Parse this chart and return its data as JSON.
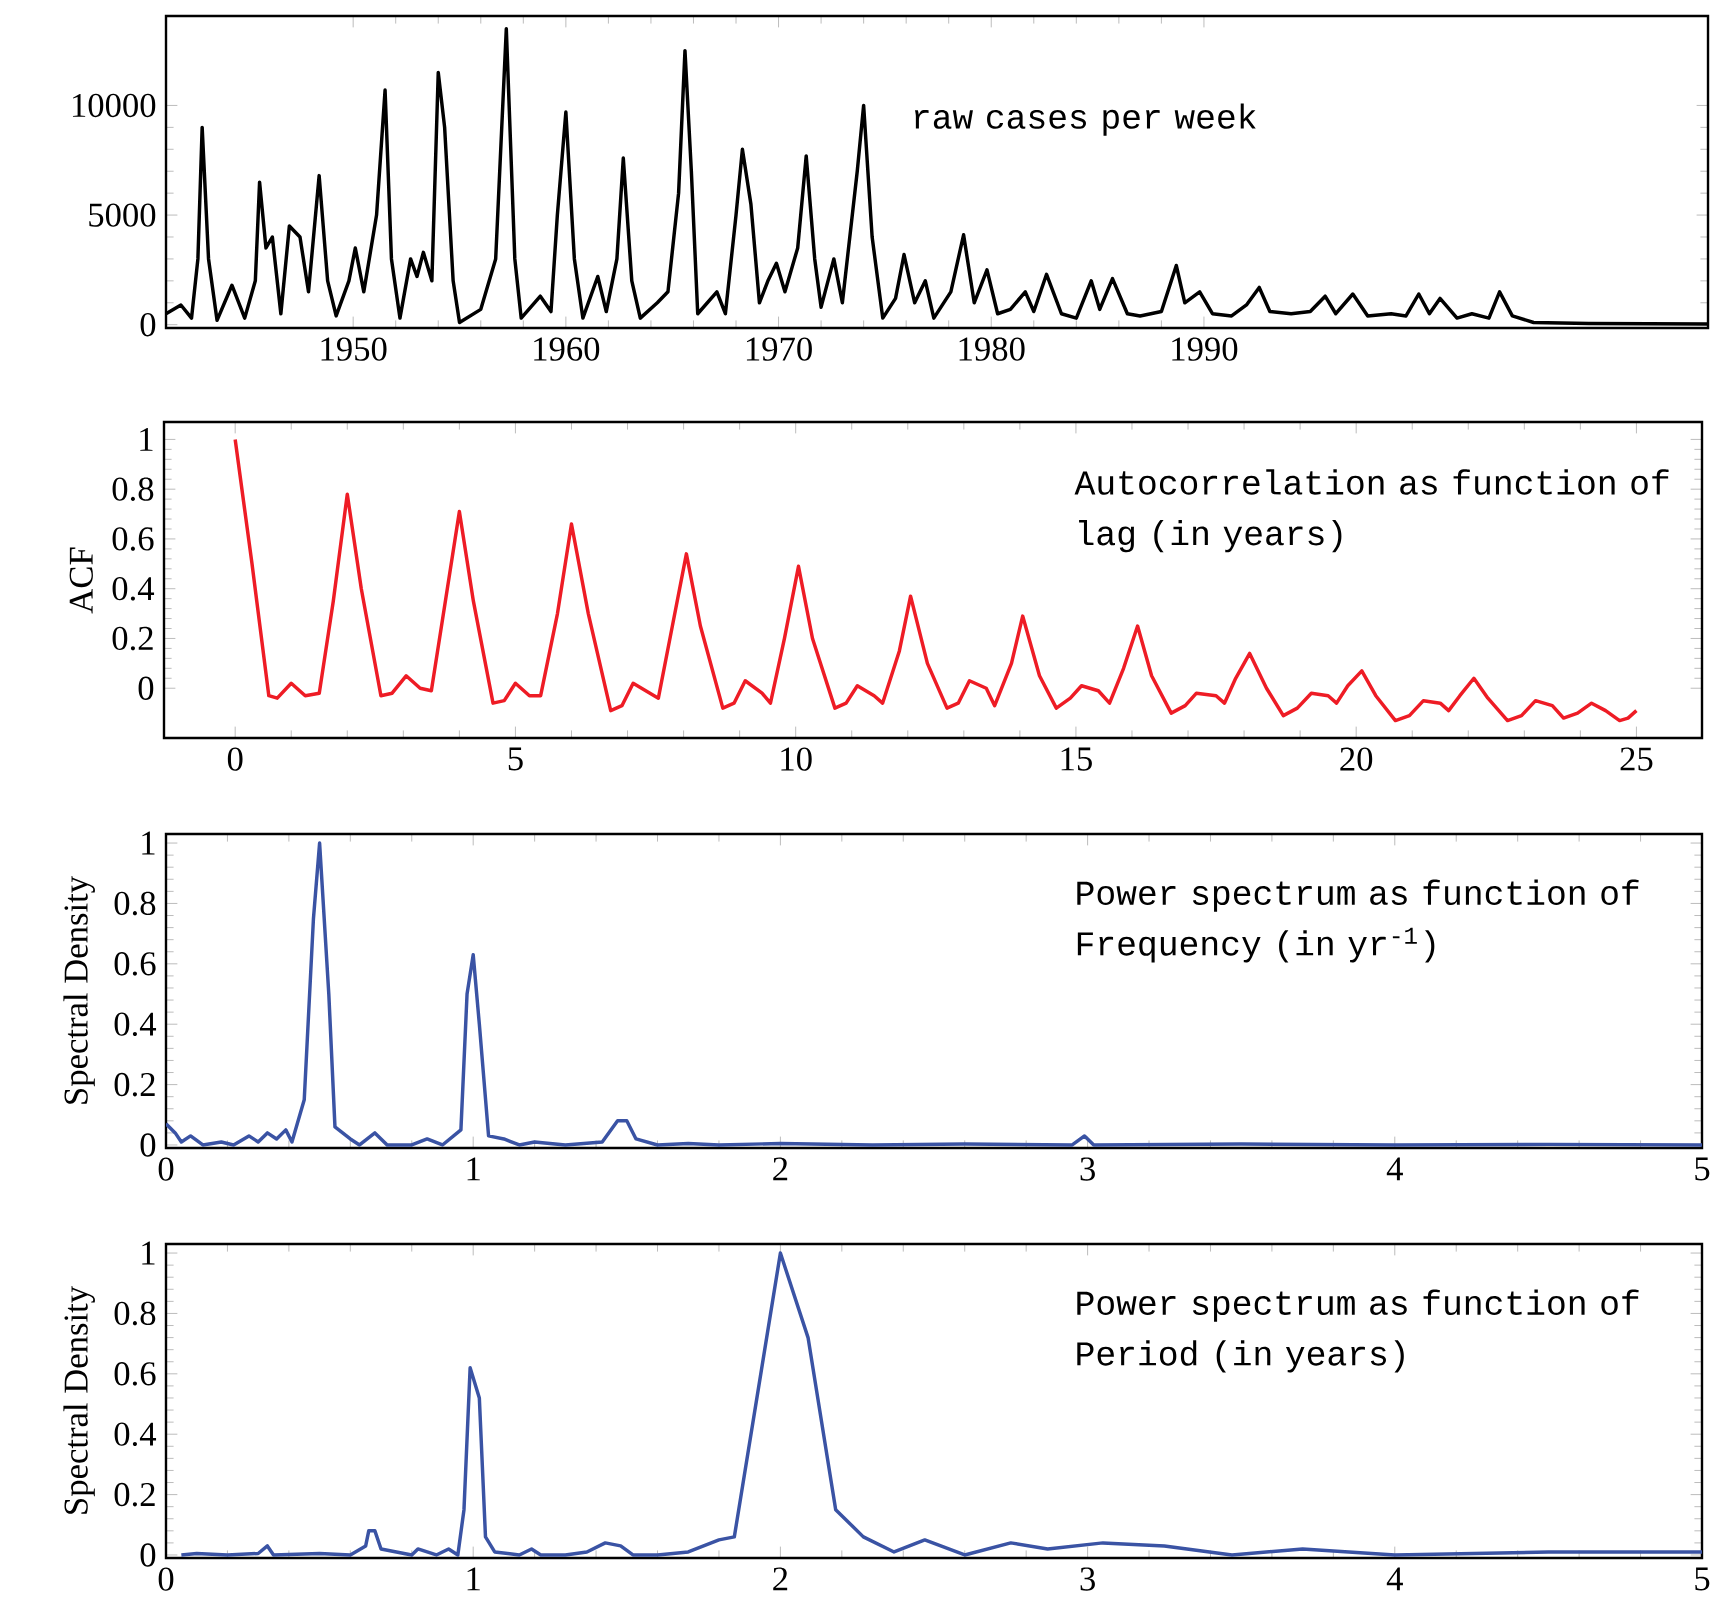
{
  "chart_data": [
    {
      "type": "line",
      "annotations": [
        "raw cases per week"
      ],
      "xlim": [
        1941.2,
        2013.7
      ],
      "ylim": [
        -150,
        14080
      ],
      "xticks": [
        1950,
        1960,
        1970,
        1980,
        1990
      ],
      "yticks": [
        0,
        5000,
        10000
      ],
      "x": [
        1941.2,
        1941.9,
        1942.4,
        1942.7,
        1942.9,
        1943.2,
        1943.6,
        1944.3,
        1944.9,
        1945.4,
        1945.6,
        1945.9,
        1946.2,
        1946.6,
        1947.0,
        1947.5,
        1947.9,
        1948.4,
        1948.8,
        1949.2,
        1949.8,
        1950.1,
        1950.5,
        1951.1,
        1951.5,
        1951.8,
        1952.2,
        1952.7,
        1953.0,
        1953.3,
        1953.7,
        1954.0,
        1954.3,
        1954.7,
        1955.0,
        1956.0,
        1956.7,
        1957.2,
        1957.6,
        1957.9,
        1958.8,
        1959.3,
        1959.6,
        1960.0,
        1960.4,
        1960.8,
        1961.5,
        1961.9,
        1962.4,
        1962.7,
        1963.1,
        1963.5,
        1964.3,
        1964.8,
        1965.3,
        1965.6,
        1965.9,
        1966.2,
        1967.1,
        1967.5,
        1968.0,
        1968.3,
        1968.7,
        1969.1,
        1969.5,
        1969.9,
        1970.3,
        1970.9,
        1971.3,
        1971.7,
        1972.0,
        1972.6,
        1973.0,
        1973.7,
        1974.0,
        1974.4,
        1974.9,
        1975.5,
        1975.9,
        1976.4,
        1976.9,
        1977.3,
        1978.1,
        1978.7,
        1979.2,
        1979.8,
        1980.3,
        1980.9,
        1981.6,
        1982.0,
        1982.6,
        1983.3,
        1984.0,
        1984.7,
        1985.1,
        1985.7,
        1986.4,
        1987.0,
        1988.0,
        1988.7,
        1989.1,
        1989.8,
        1990.4,
        1991.3,
        1992.0,
        1992.6,
        1993.1,
        1994.1,
        1995.0,
        1995.7,
        1996.2,
        1997.0,
        1997.7,
        1998.8,
        1999.5,
        2000.1,
        2000.6,
        2001.1,
        2001.9,
        2002.6,
        2003.4,
        2003.9,
        2004.5,
        2005.5,
        2008.1,
        2013.7
      ],
      "series": [
        {
          "color": "#000000",
          "values": [
            500,
            900,
            300,
            3000,
            9000,
            3000,
            200,
            1800,
            300,
            2000,
            6500,
            3500,
            4000,
            500,
            4500,
            4000,
            1500,
            6800,
            2000,
            400,
            2000,
            3500,
            1500,
            5000,
            10700,
            3000,
            300,
            3000,
            2200,
            3300,
            2000,
            11500,
            9000,
            2000,
            100,
            700,
            3000,
            13500,
            3000,
            300,
            1300,
            600,
            5000,
            9700,
            3000,
            300,
            2200,
            600,
            3000,
            7600,
            2000,
            300,
            1000,
            1500,
            6000,
            12500,
            7000,
            500,
            1500,
            500,
            5000,
            8000,
            5500,
            1000,
            2000,
            2800,
            1500,
            3500,
            7700,
            3000,
            800,
            3000,
            1000,
            7000,
            10000,
            4000,
            300,
            1200,
            3200,
            1000,
            2000,
            300,
            1500,
            4100,
            1000,
            2500,
            500,
            700,
            1500,
            600,
            2300,
            500,
            300,
            2000,
            700,
            2100,
            500,
            400,
            600,
            2700,
            1000,
            1500,
            500,
            400,
            900,
            1700,
            600,
            500,
            600,
            1300,
            500,
            1400,
            400,
            500,
            400,
            1400,
            500,
            1200,
            300,
            500,
            300,
            1500,
            400,
            100,
            50,
            30
          ]
        }
      ]
    },
    {
      "type": "line",
      "ylabel": "ACF",
      "annotations": [
        "Autocorrelation as function of lag (in years)"
      ],
      "xlim": [
        -1.27,
        26.17
      ],
      "ylim": [
        -0.2,
        1.07
      ],
      "xticks": [
        0,
        5,
        10,
        15,
        20,
        25
      ],
      "yticks": [
        0,
        0.2,
        0.4,
        0.6,
        0.8,
        1
      ],
      "x": [
        0,
        0.3,
        0.6,
        0.75,
        1.0,
        1.25,
        1.5,
        1.75,
        2.0,
        2.25,
        2.6,
        2.8,
        3.05,
        3.3,
        3.5,
        3.75,
        4.0,
        4.25,
        4.6,
        4.8,
        5.0,
        5.25,
        5.45,
        5.75,
        6.0,
        6.3,
        6.7,
        6.9,
        7.1,
        7.4,
        7.55,
        7.8,
        8.05,
        8.3,
        8.7,
        8.9,
        9.1,
        9.4,
        9.55,
        9.8,
        10.05,
        10.3,
        10.7,
        10.9,
        11.1,
        11.4,
        11.55,
        11.85,
        12.05,
        12.35,
        12.7,
        12.9,
        13.1,
        13.4,
        13.55,
        13.85,
        14.05,
        14.35,
        14.65,
        14.9,
        15.1,
        15.4,
        15.6,
        15.85,
        16.1,
        16.35,
        16.7,
        16.95,
        17.15,
        17.5,
        17.65,
        17.85,
        18.1,
        18.4,
        18.7,
        18.95,
        19.2,
        19.5,
        19.65,
        19.85,
        20.1,
        20.35,
        20.7,
        20.95,
        21.2,
        21.5,
        21.65,
        21.85,
        22.1,
        22.35,
        22.7,
        22.95,
        23.2,
        23.5,
        23.7,
        23.95,
        24.2,
        24.45,
        24.7,
        24.85,
        25.0
      ],
      "series": [
        {
          "color": "#ee1c25",
          "values": [
            1.0,
            0.5,
            -0.03,
            -0.04,
            0.02,
            -0.03,
            -0.02,
            0.35,
            0.78,
            0.4,
            -0.03,
            -0.02,
            0.05,
            0.0,
            -0.01,
            0.35,
            0.71,
            0.35,
            -0.06,
            -0.05,
            0.02,
            -0.03,
            -0.03,
            0.3,
            0.66,
            0.3,
            -0.09,
            -0.07,
            0.02,
            -0.02,
            -0.04,
            0.25,
            0.54,
            0.25,
            -0.08,
            -0.06,
            0.03,
            -0.02,
            -0.06,
            0.2,
            0.49,
            0.2,
            -0.08,
            -0.06,
            0.01,
            -0.03,
            -0.06,
            0.15,
            0.37,
            0.1,
            -0.08,
            -0.06,
            0.03,
            0.0,
            -0.07,
            0.1,
            0.29,
            0.05,
            -0.08,
            -0.04,
            0.01,
            -0.01,
            -0.06,
            0.08,
            0.25,
            0.05,
            -0.1,
            -0.07,
            -0.02,
            -0.03,
            -0.06,
            0.04,
            0.14,
            0.0,
            -0.11,
            -0.08,
            -0.02,
            -0.03,
            -0.06,
            0.01,
            0.07,
            -0.03,
            -0.13,
            -0.11,
            -0.05,
            -0.06,
            -0.09,
            -0.03,
            0.04,
            -0.04,
            -0.13,
            -0.11,
            -0.05,
            -0.07,
            -0.12,
            -0.1,
            -0.06,
            -0.09,
            -0.13,
            -0.12,
            -0.09
          ]
        }
      ]
    },
    {
      "type": "line",
      "ylabel": "Spectral Density",
      "annotations": [
        "Power spectrum as function of Frequency (in yr$^{-1}$)"
      ],
      "xlim": [
        0,
        5
      ],
      "ylim": [
        -0.01,
        1.03
      ],
      "xticks": [
        0,
        1,
        2,
        3,
        4,
        5
      ],
      "yticks": [
        0,
        0.2,
        0.4,
        0.6,
        0.8,
        1
      ],
      "x": [
        0.0,
        0.03,
        0.05,
        0.08,
        0.12,
        0.18,
        0.22,
        0.27,
        0.3,
        0.33,
        0.36,
        0.39,
        0.41,
        0.45,
        0.48,
        0.5,
        0.53,
        0.55,
        0.6,
        0.63,
        0.68,
        0.72,
        0.8,
        0.85,
        0.9,
        0.96,
        0.98,
        1.0,
        1.02,
        1.05,
        1.1,
        1.15,
        1.2,
        1.3,
        1.42,
        1.47,
        1.5,
        1.53,
        1.6,
        1.7,
        1.8,
        2.0,
        2.3,
        2.6,
        2.95,
        2.99,
        3.02,
        3.5,
        4.0,
        4.5,
        5.0
      ],
      "series": [
        {
          "color": "#3a53a4",
          "values": [
            0.07,
            0.04,
            0.01,
            0.03,
            0.0,
            0.01,
            0.0,
            0.03,
            0.01,
            0.04,
            0.02,
            0.05,
            0.01,
            0.15,
            0.75,
            1.0,
            0.5,
            0.06,
            0.02,
            0.0,
            0.04,
            0.0,
            0.0,
            0.02,
            0.0,
            0.05,
            0.5,
            0.63,
            0.4,
            0.03,
            0.02,
            0.0,
            0.01,
            0.0,
            0.01,
            0.08,
            0.08,
            0.02,
            0.0,
            0.005,
            0.0,
            0.005,
            0.0,
            0.003,
            0.0,
            0.03,
            0.0,
            0.003,
            0.0,
            0.002,
            0.0
          ]
        }
      ]
    },
    {
      "type": "line",
      "ylabel": "Spectral Density",
      "annotations": [
        "Power spectrum as function of Period (in years)"
      ],
      "xlim": [
        0,
        5
      ],
      "ylim": [
        -0.01,
        1.03
      ],
      "xticks": [
        0,
        1,
        2,
        3,
        4,
        5
      ],
      "yticks": [
        0,
        0.2,
        0.4,
        0.6,
        0.8,
        1
      ],
      "x": [
        0.05,
        0.1,
        0.2,
        0.3,
        0.33,
        0.35,
        0.5,
        0.6,
        0.65,
        0.66,
        0.68,
        0.7,
        0.8,
        0.82,
        0.88,
        0.92,
        0.95,
        0.97,
        0.99,
        1.02,
        1.04,
        1.07,
        1.15,
        1.19,
        1.22,
        1.3,
        1.37,
        1.43,
        1.48,
        1.52,
        1.6,
        1.7,
        1.8,
        1.85,
        2.0,
        2.09,
        2.18,
        2.27,
        2.37,
        2.47,
        2.6,
        2.75,
        2.87,
        3.05,
        3.25,
        3.47,
        3.7,
        4.0,
        4.5,
        5.0
      ],
      "series": [
        {
          "color": "#3a53a4",
          "values": [
            0.0,
            0.005,
            0.0,
            0.005,
            0.03,
            0.0,
            0.005,
            0.0,
            0.03,
            0.08,
            0.08,
            0.02,
            0.0,
            0.02,
            0.0,
            0.02,
            0.0,
            0.15,
            0.62,
            0.52,
            0.06,
            0.01,
            0.0,
            0.02,
            0.0,
            0.0,
            0.01,
            0.04,
            0.03,
            0.0,
            0.0,
            0.01,
            0.05,
            0.06,
            1.0,
            0.72,
            0.15,
            0.06,
            0.01,
            0.05,
            0.0,
            0.04,
            0.02,
            0.04,
            0.03,
            0.0,
            0.02,
            0.0,
            0.01,
            0.01
          ]
        }
      ]
    }
  ]
}
